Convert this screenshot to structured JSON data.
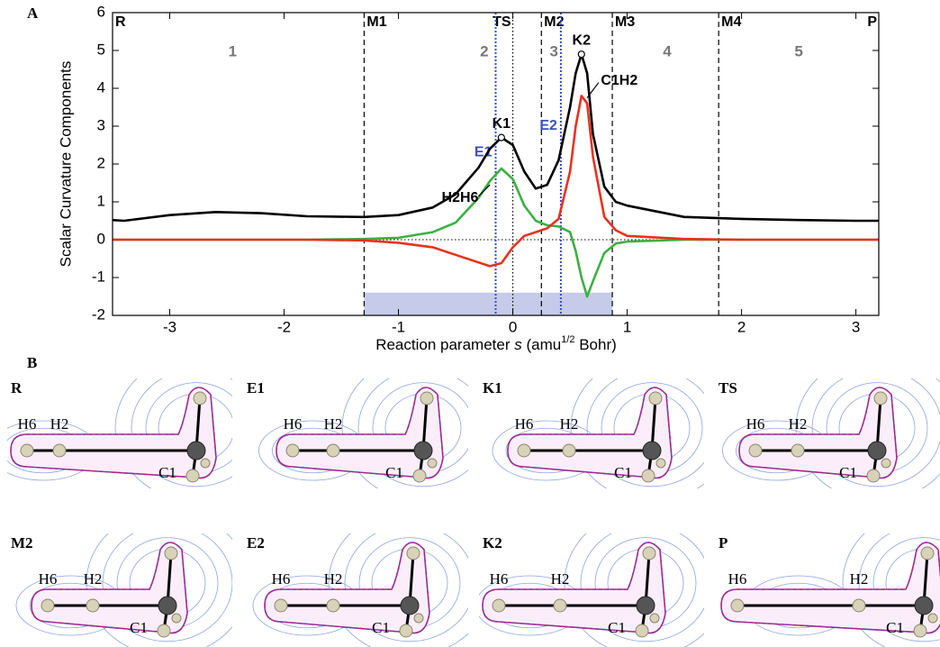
{
  "chart_data": {
    "type": "line",
    "panel_label": "A",
    "x_label": [
      "Reaction parameter ",
      "s",
      " (amu",
      "1/2",
      " Bohr)"
    ],
    "y_label": "Scalar Curvature Components",
    "x": [
      -3.5,
      -3.4,
      -3,
      -2.6,
      -2.2,
      -1.8,
      -1.3,
      -1,
      -0.7,
      -0.5,
      -0.3,
      -0.2,
      -0.1,
      0,
      0.1,
      0.2,
      0.3,
      0.4,
      0.5,
      0.55,
      0.6,
      0.65,
      0.7,
      0.8,
      0.9,
      1,
      1.5,
      2,
      2.5,
      3,
      3.2
    ],
    "series": [
      {
        "color": "#000000",
        "values": [
          0.52,
          0.5,
          0.65,
          0.73,
          0.7,
          0.62,
          0.6,
          0.65,
          0.85,
          1.2,
          1.9,
          2.4,
          2.7,
          2.5,
          1.8,
          1.35,
          1.45,
          2.1,
          3.5,
          4.4,
          4.9,
          4.4,
          2.8,
          1.4,
          1.0,
          0.9,
          0.6,
          0.55,
          0.52,
          0.5,
          0.5
        ]
      },
      {
        "name": "H2H6",
        "color": "#3cb043",
        "values": [
          0,
          0,
          0,
          0,
          0,
          0,
          0.02,
          0.05,
          0.2,
          0.45,
          1.1,
          1.55,
          1.88,
          1.6,
          0.9,
          0.5,
          0.38,
          0.35,
          0.2,
          -0.3,
          -1.0,
          -1.5,
          -1.1,
          -0.35,
          -0.1,
          -0.05,
          0,
          0,
          0,
          0,
          0
        ]
      },
      {
        "name": "C1H2",
        "color": "#e8321e",
        "values": [
          0,
          0,
          0,
          0,
          0,
          0,
          -0.02,
          -0.08,
          -0.2,
          -0.4,
          -0.6,
          -0.7,
          -0.62,
          -0.2,
          0.1,
          0.2,
          0.3,
          0.55,
          1.8,
          3.0,
          3.8,
          3.6,
          2.2,
          0.6,
          0.25,
          0.1,
          0.02,
          0,
          0,
          0,
          0
        ]
      }
    ],
    "peaks": [
      "K1",
      "K2"
    ],
    "markers": [
      {
        "label": "R",
        "x": -3.5,
        "style": "edge"
      },
      {
        "label": "M1",
        "x": -1.3,
        "style": "dashed"
      },
      {
        "label": "TS",
        "x": 0,
        "style": "dotted"
      },
      {
        "label": "M2",
        "x": 0.25,
        "style": "dashed"
      },
      {
        "label": "M3",
        "x": 0.87,
        "style": "dashed"
      },
      {
        "label": "M4",
        "x": 1.8,
        "style": "dashed"
      },
      {
        "label": "P",
        "x": 3.2,
        "style": "edge"
      },
      {
        "label": "E1",
        "x": -0.15,
        "style": "blue"
      },
      {
        "label": "E2",
        "x": 0.42,
        "style": "blue"
      }
    ],
    "regions": [
      "1",
      "2",
      "3",
      "4",
      "5"
    ],
    "highlight": {
      "x": [
        -1.3,
        0.87
      ],
      "y": [
        -2,
        -1.4
      ],
      "color": "#c5cbe8"
    },
    "zero_line": true,
    "xlim": [
      -3.5,
      3.2
    ],
    "ylim": [
      -2,
      6
    ],
    "xticks": [
      -3,
      -2,
      -1,
      0,
      1,
      2,
      3
    ],
    "yticks": [
      -2,
      -1,
      0,
      1,
      2,
      3,
      4,
      5,
      6
    ]
  },
  "panel_b": {
    "label": "B",
    "panels": [
      {
        "label": "R",
        "atoms": [
          "H6",
          "H2",
          "C1"
        ]
      },
      {
        "label": "E1",
        "atoms": [
          "H6",
          "H2",
          "C1"
        ]
      },
      {
        "label": "K1",
        "atoms": [
          "H6",
          "H2",
          "C1"
        ]
      },
      {
        "label": "TS",
        "atoms": [
          "H6",
          "H2",
          "C1"
        ]
      },
      {
        "label": "M2",
        "atoms": [
          "H6",
          "H2",
          "C1"
        ]
      },
      {
        "label": "E2",
        "atoms": [
          "H6",
          "H2",
          "C1"
        ]
      },
      {
        "label": "K2",
        "atoms": [
          "H6",
          "H2",
          "C1"
        ]
      },
      {
        "label": "P",
        "atoms": [
          "H6",
          "H2",
          "C1"
        ]
      }
    ]
  }
}
